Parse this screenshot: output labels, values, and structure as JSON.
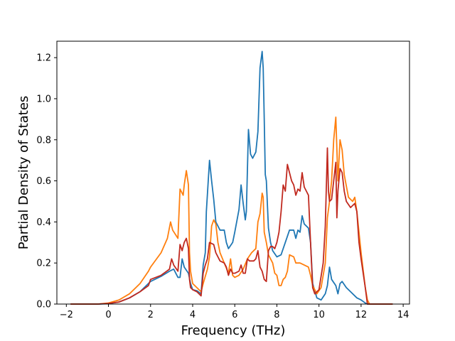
{
  "chart_data": {
    "type": "line",
    "title": "",
    "xlabel": "Frequency (THz)",
    "ylabel": "Partial Density of States",
    "xlim": [
      -2.45,
      14.3
    ],
    "ylim": [
      0,
      1.28
    ],
    "xticks": [
      -2,
      0,
      2,
      4,
      6,
      8,
      10,
      12,
      14
    ],
    "yticks": [
      0.0,
      0.2,
      0.4,
      0.6,
      0.8,
      1.0,
      1.2
    ],
    "xtick_labels": [
      "−2",
      "0",
      "2",
      "4",
      "6",
      "8",
      "10",
      "12",
      "14"
    ],
    "ytick_labels": [
      "0.0",
      "0.2",
      "0.4",
      "0.6",
      "0.8",
      "1.0",
      "1.2"
    ],
    "grid": false,
    "legend": false,
    "series": [
      {
        "color": "#1f77b4",
        "points": [
          [
            -1.8,
            0
          ],
          [
            -0.5,
            0
          ],
          [
            0,
            0.002
          ],
          [
            0.5,
            0.01
          ],
          [
            1.0,
            0.03
          ],
          [
            1.5,
            0.06
          ],
          [
            2.0,
            0.11
          ],
          [
            2.5,
            0.135
          ],
          [
            2.9,
            0.16
          ],
          [
            3.1,
            0.17
          ],
          [
            3.3,
            0.13
          ],
          [
            3.4,
            0.13
          ],
          [
            3.5,
            0.22
          ],
          [
            3.6,
            0.18
          ],
          [
            3.8,
            0.15
          ],
          [
            3.9,
            0.1
          ],
          [
            4.0,
            0.07
          ],
          [
            4.2,
            0.065
          ],
          [
            4.4,
            0.05
          ],
          [
            4.5,
            0.19
          ],
          [
            4.6,
            0.25
          ],
          [
            4.65,
            0.45
          ],
          [
            4.8,
            0.7
          ],
          [
            4.9,
            0.6
          ],
          [
            5.0,
            0.51
          ],
          [
            5.1,
            0.4
          ],
          [
            5.3,
            0.36
          ],
          [
            5.5,
            0.36
          ],
          [
            5.6,
            0.3
          ],
          [
            5.7,
            0.27
          ],
          [
            5.9,
            0.3
          ],
          [
            6.0,
            0.35
          ],
          [
            6.2,
            0.46
          ],
          [
            6.3,
            0.58
          ],
          [
            6.4,
            0.49
          ],
          [
            6.5,
            0.41
          ],
          [
            6.55,
            0.45
          ],
          [
            6.65,
            0.85
          ],
          [
            6.75,
            0.73
          ],
          [
            6.85,
            0.71
          ],
          [
            7.0,
            0.74
          ],
          [
            7.1,
            0.84
          ],
          [
            7.2,
            1.15
          ],
          [
            7.3,
            1.23
          ],
          [
            7.35,
            1.15
          ],
          [
            7.4,
            0.9
          ],
          [
            7.45,
            0.63
          ],
          [
            7.5,
            0.6
          ],
          [
            7.6,
            0.37
          ],
          [
            7.7,
            0.3
          ],
          [
            7.8,
            0.26
          ],
          [
            8.0,
            0.23
          ],
          [
            8.2,
            0.24
          ],
          [
            8.4,
            0.3
          ],
          [
            8.6,
            0.36
          ],
          [
            8.8,
            0.36
          ],
          [
            8.9,
            0.32
          ],
          [
            9.0,
            0.36
          ],
          [
            9.1,
            0.35
          ],
          [
            9.2,
            0.43
          ],
          [
            9.3,
            0.39
          ],
          [
            9.5,
            0.37
          ],
          [
            9.6,
            0.3
          ],
          [
            9.7,
            0.1
          ],
          [
            9.9,
            0.03
          ],
          [
            10.1,
            0.02
          ],
          [
            10.3,
            0.05
          ],
          [
            10.4,
            0.09
          ],
          [
            10.5,
            0.18
          ],
          [
            10.6,
            0.12
          ],
          [
            10.8,
            0.09
          ],
          [
            10.9,
            0.05
          ],
          [
            11.0,
            0.1
          ],
          [
            11.1,
            0.11
          ],
          [
            11.3,
            0.08
          ],
          [
            11.5,
            0.06
          ],
          [
            11.8,
            0.03
          ],
          [
            12.0,
            0.02
          ],
          [
            12.2,
            0.005
          ],
          [
            12.3,
            0
          ],
          [
            13.5,
            0
          ]
        ]
      },
      {
        "color": "#ff7f0e",
        "points": [
          [
            -1.8,
            0
          ],
          [
            -0.5,
            0
          ],
          [
            0,
            0.005
          ],
          [
            0.5,
            0.02
          ],
          [
            1.0,
            0.05
          ],
          [
            1.5,
            0.1
          ],
          [
            1.9,
            0.16
          ],
          [
            2.0,
            0.18
          ],
          [
            2.5,
            0.25
          ],
          [
            2.8,
            0.32
          ],
          [
            2.95,
            0.4
          ],
          [
            3.05,
            0.36
          ],
          [
            3.3,
            0.32
          ],
          [
            3.4,
            0.56
          ],
          [
            3.5,
            0.54
          ],
          [
            3.55,
            0.53
          ],
          [
            3.6,
            0.58
          ],
          [
            3.7,
            0.65
          ],
          [
            3.8,
            0.58
          ],
          [
            3.85,
            0.25
          ],
          [
            3.9,
            0.16
          ],
          [
            4.0,
            0.1
          ],
          [
            4.2,
            0.08
          ],
          [
            4.4,
            0.06
          ],
          [
            4.5,
            0.1
          ],
          [
            4.7,
            0.17
          ],
          [
            4.8,
            0.23
          ],
          [
            4.9,
            0.38
          ],
          [
            5.0,
            0.41
          ],
          [
            5.1,
            0.39
          ],
          [
            5.2,
            0.3
          ],
          [
            5.3,
            0.25
          ],
          [
            5.5,
            0.2
          ],
          [
            5.7,
            0.15
          ],
          [
            5.8,
            0.22
          ],
          [
            5.9,
            0.14
          ],
          [
            6.0,
            0.13
          ],
          [
            6.2,
            0.14
          ],
          [
            6.4,
            0.17
          ],
          [
            6.6,
            0.22
          ],
          [
            6.8,
            0.25
          ],
          [
            7.0,
            0.27
          ],
          [
            7.1,
            0.4
          ],
          [
            7.2,
            0.44
          ],
          [
            7.3,
            0.54
          ],
          [
            7.35,
            0.52
          ],
          [
            7.4,
            0.35
          ],
          [
            7.5,
            0.3
          ],
          [
            7.6,
            0.24
          ],
          [
            7.8,
            0.2
          ],
          [
            7.9,
            0.15
          ],
          [
            8.0,
            0.14
          ],
          [
            8.1,
            0.09
          ],
          [
            8.2,
            0.09
          ],
          [
            8.3,
            0.12
          ],
          [
            8.4,
            0.13
          ],
          [
            8.5,
            0.16
          ],
          [
            8.6,
            0.24
          ],
          [
            8.8,
            0.23
          ],
          [
            8.9,
            0.2
          ],
          [
            9.1,
            0.2
          ],
          [
            9.3,
            0.19
          ],
          [
            9.5,
            0.18
          ],
          [
            9.6,
            0.14
          ],
          [
            9.7,
            0.09
          ],
          [
            9.9,
            0.05
          ],
          [
            10.1,
            0.08
          ],
          [
            10.3,
            0.2
          ],
          [
            10.4,
            0.42
          ],
          [
            10.5,
            0.5
          ],
          [
            10.6,
            0.6
          ],
          [
            10.7,
            0.8
          ],
          [
            10.8,
            0.91
          ],
          [
            10.9,
            0.6
          ],
          [
            11.0,
            0.8
          ],
          [
            11.1,
            0.75
          ],
          [
            11.2,
            0.63
          ],
          [
            11.4,
            0.52
          ],
          [
            11.6,
            0.5
          ],
          [
            11.7,
            0.52
          ],
          [
            11.8,
            0.45
          ],
          [
            11.9,
            0.35
          ],
          [
            12.0,
            0.25
          ],
          [
            12.2,
            0.08
          ],
          [
            12.3,
            0.02
          ],
          [
            12.4,
            0
          ],
          [
            13.5,
            0
          ]
        ]
      },
      {
        "color": "#c0291f",
        "points": [
          [
            -1.8,
            0
          ],
          [
            -0.5,
            0
          ],
          [
            0,
            0.003
          ],
          [
            0.5,
            0.01
          ],
          [
            1.0,
            0.03
          ],
          [
            1.5,
            0.06
          ],
          [
            1.9,
            0.09
          ],
          [
            2.0,
            0.12
          ],
          [
            2.5,
            0.14
          ],
          [
            2.9,
            0.17
          ],
          [
            3.0,
            0.22
          ],
          [
            3.1,
            0.19
          ],
          [
            3.3,
            0.16
          ],
          [
            3.4,
            0.29
          ],
          [
            3.5,
            0.26
          ],
          [
            3.6,
            0.3
          ],
          [
            3.7,
            0.32
          ],
          [
            3.8,
            0.27
          ],
          [
            3.85,
            0.12
          ],
          [
            3.9,
            0.08
          ],
          [
            4.0,
            0.07
          ],
          [
            4.2,
            0.06
          ],
          [
            4.4,
            0.04
          ],
          [
            4.5,
            0.15
          ],
          [
            4.6,
            0.19
          ],
          [
            4.7,
            0.22
          ],
          [
            4.8,
            0.3
          ],
          [
            5.0,
            0.29
          ],
          [
            5.1,
            0.25
          ],
          [
            5.3,
            0.21
          ],
          [
            5.5,
            0.2
          ],
          [
            5.6,
            0.18
          ],
          [
            5.7,
            0.14
          ],
          [
            5.8,
            0.17
          ],
          [
            5.9,
            0.15
          ],
          [
            6.0,
            0.15
          ],
          [
            6.2,
            0.16
          ],
          [
            6.3,
            0.19
          ],
          [
            6.4,
            0.15
          ],
          [
            6.5,
            0.15
          ],
          [
            6.6,
            0.22
          ],
          [
            6.7,
            0.21
          ],
          [
            6.9,
            0.21
          ],
          [
            7.0,
            0.22
          ],
          [
            7.1,
            0.26
          ],
          [
            7.2,
            0.18
          ],
          [
            7.3,
            0.16
          ],
          [
            7.4,
            0.12
          ],
          [
            7.5,
            0.11
          ],
          [
            7.6,
            0.26
          ],
          [
            7.7,
            0.28
          ],
          [
            7.8,
            0.28
          ],
          [
            7.9,
            0.27
          ],
          [
            8.0,
            0.3
          ],
          [
            8.1,
            0.35
          ],
          [
            8.2,
            0.45
          ],
          [
            8.3,
            0.58
          ],
          [
            8.4,
            0.55
          ],
          [
            8.5,
            0.68
          ],
          [
            8.6,
            0.64
          ],
          [
            8.7,
            0.6
          ],
          [
            8.8,
            0.58
          ],
          [
            8.9,
            0.53
          ],
          [
            9.0,
            0.56
          ],
          [
            9.1,
            0.55
          ],
          [
            9.2,
            0.64
          ],
          [
            9.3,
            0.57
          ],
          [
            9.4,
            0.55
          ],
          [
            9.5,
            0.53
          ],
          [
            9.6,
            0.3
          ],
          [
            9.7,
            0.08
          ],
          [
            9.8,
            0.05
          ],
          [
            10.0,
            0.07
          ],
          [
            10.2,
            0.2
          ],
          [
            10.3,
            0.38
          ],
          [
            10.4,
            0.76
          ],
          [
            10.45,
            0.55
          ],
          [
            10.5,
            0.5
          ],
          [
            10.6,
            0.51
          ],
          [
            10.7,
            0.6
          ],
          [
            10.8,
            0.69
          ],
          [
            10.85,
            0.42
          ],
          [
            10.9,
            0.55
          ],
          [
            11.0,
            0.66
          ],
          [
            11.1,
            0.64
          ],
          [
            11.2,
            0.55
          ],
          [
            11.3,
            0.5
          ],
          [
            11.5,
            0.47
          ],
          [
            11.7,
            0.49
          ],
          [
            11.8,
            0.45
          ],
          [
            11.9,
            0.3
          ],
          [
            12.0,
            0.22
          ],
          [
            12.1,
            0.15
          ],
          [
            12.2,
            0.08
          ],
          [
            12.3,
            0
          ],
          [
            13.5,
            0
          ]
        ]
      }
    ]
  }
}
